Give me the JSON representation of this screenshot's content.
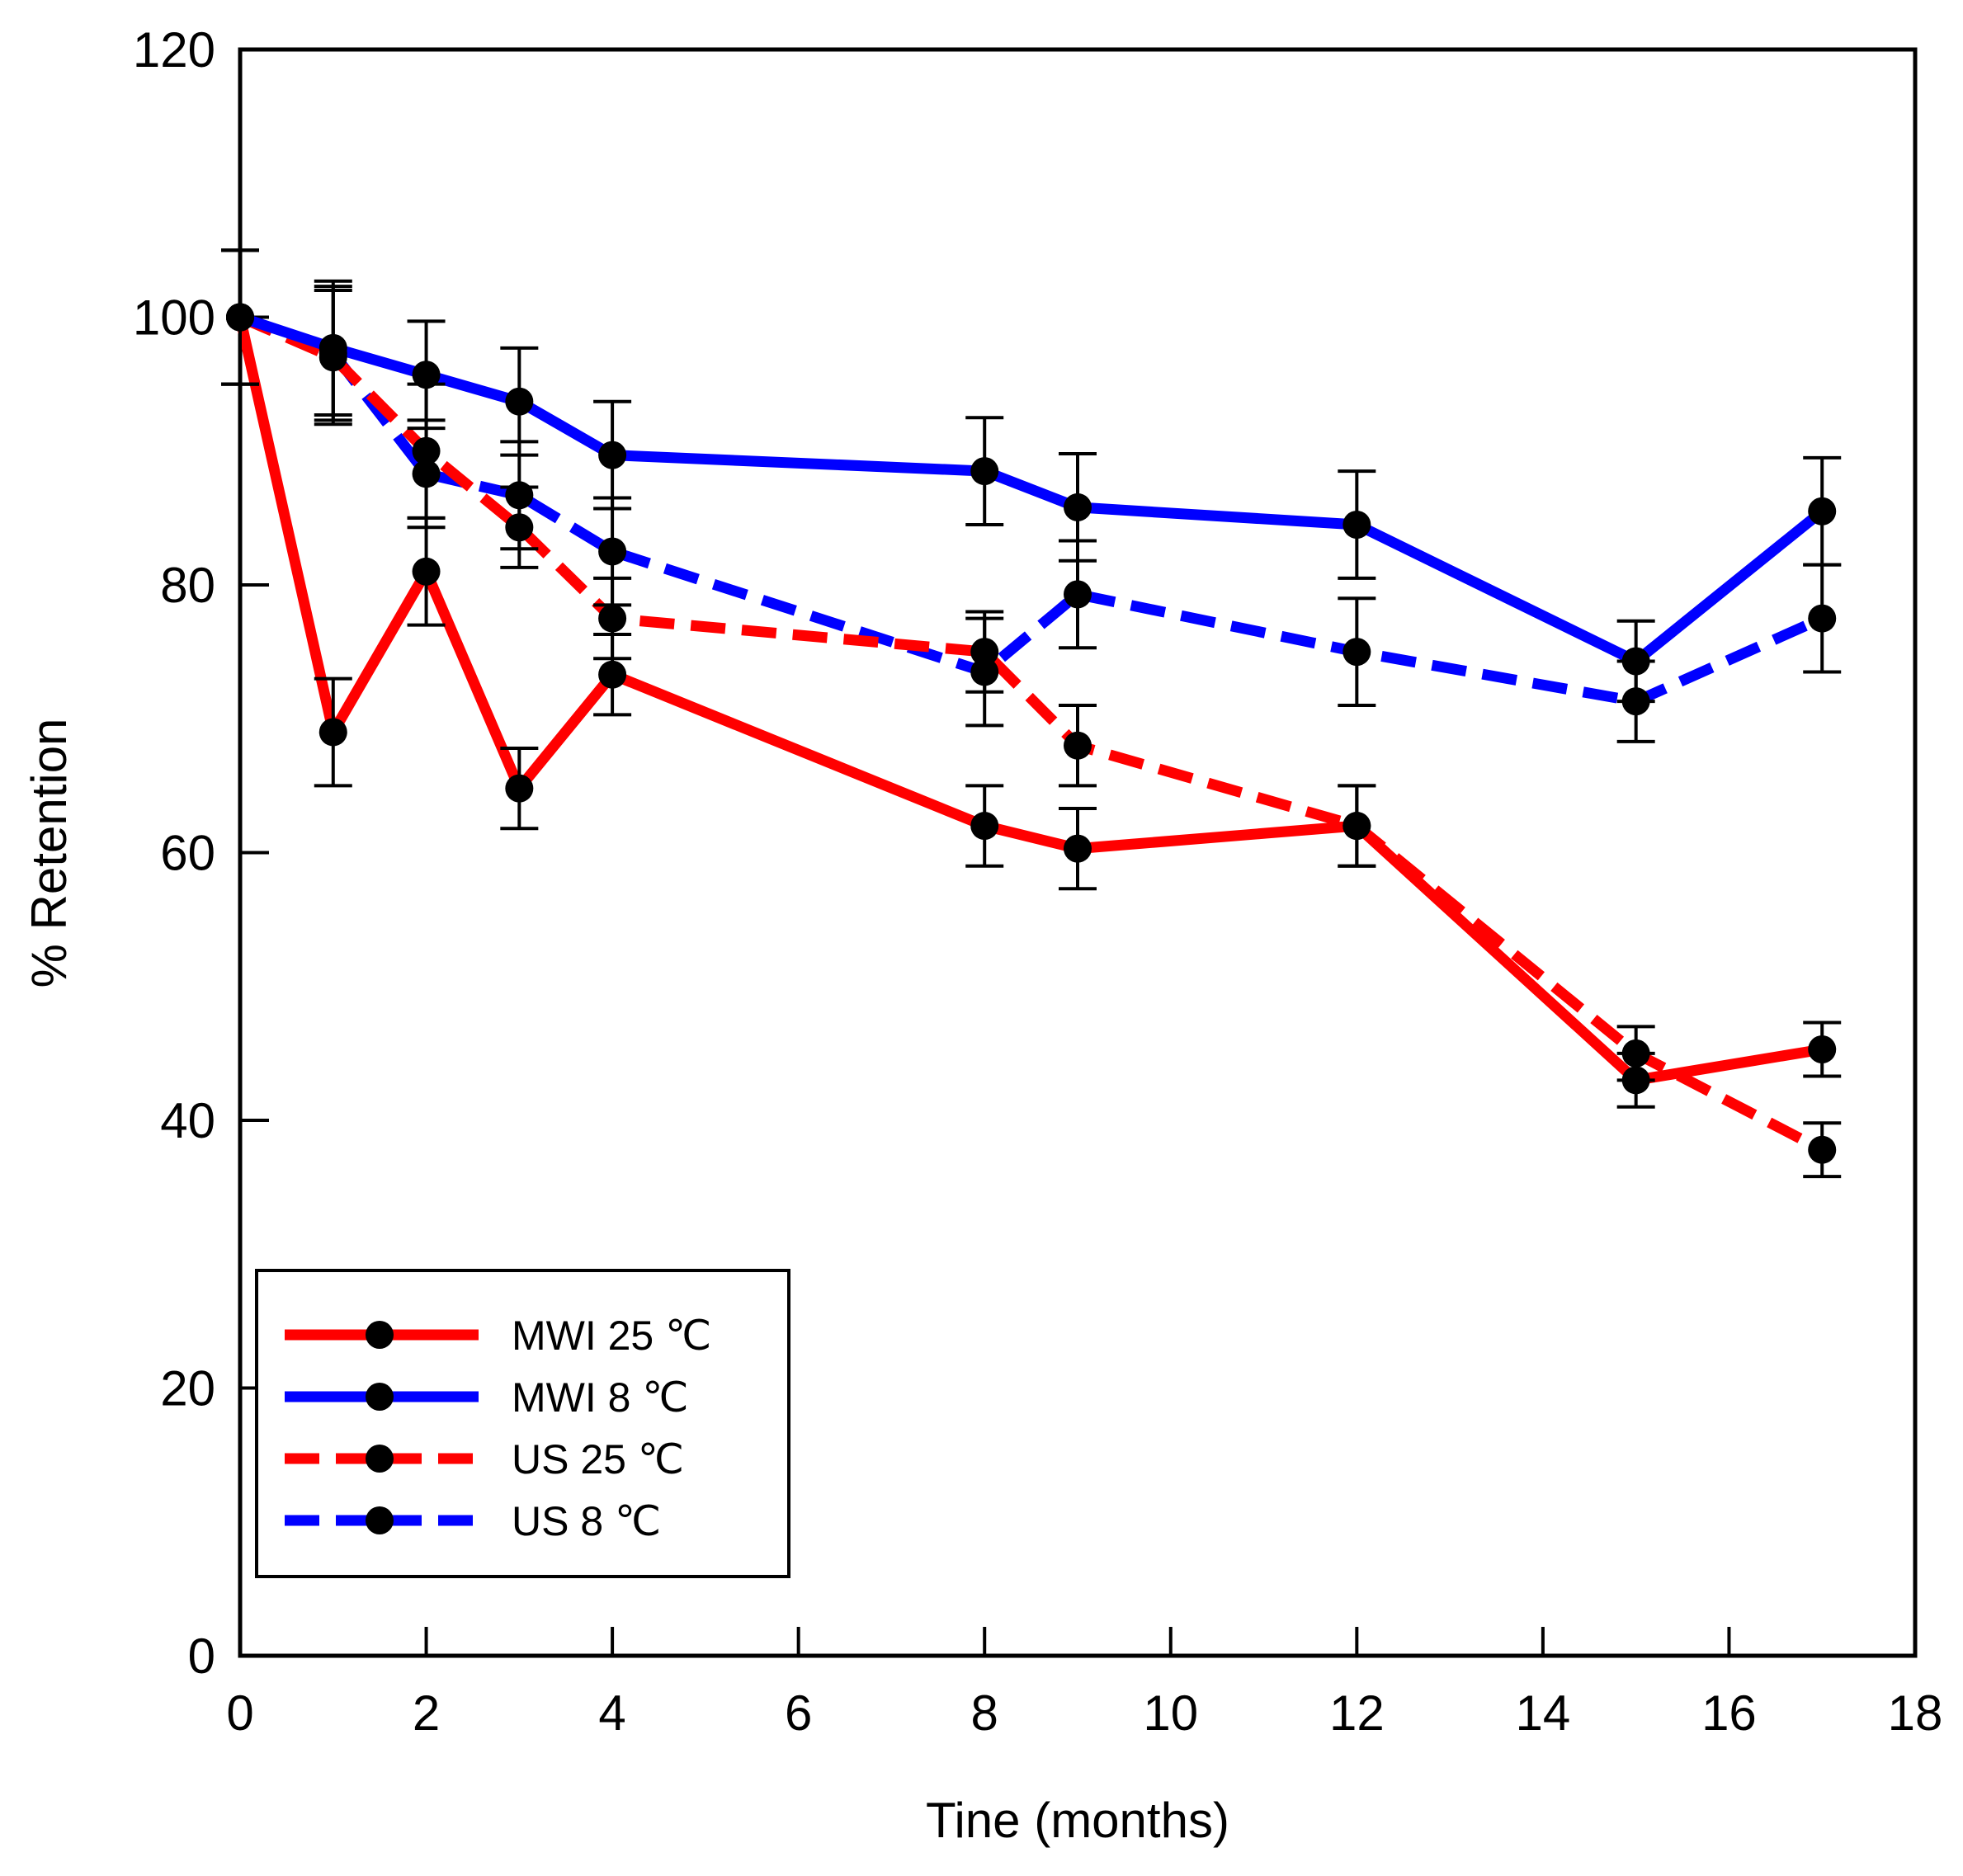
{
  "chart_data": {
    "type": "line",
    "title": "",
    "xlabel": "Tine (months)",
    "ylabel": "% Retention",
    "xlim": [
      0,
      18
    ],
    "ylim": [
      0,
      120
    ],
    "xticks": [
      0,
      2,
      4,
      6,
      8,
      10,
      12,
      14,
      16,
      18
    ],
    "yticks": [
      0,
      20,
      40,
      60,
      80,
      100,
      120
    ],
    "grid": false,
    "legend_position": "lower-left",
    "series": [
      {
        "name": "MWI 25 ℃",
        "color": "#ff0000",
        "dash": "solid",
        "x": [
          0,
          1,
          2,
          3,
          4,
          8,
          9,
          12,
          15,
          17
        ],
        "y": [
          100,
          69,
          81,
          64.8,
          73.3,
          62,
          60.3,
          62,
          43,
          45.3
        ],
        "err": [
          5,
          4,
          4,
          3,
          3,
          3,
          3,
          3,
          2,
          2
        ]
      },
      {
        "name": "MWI 8 ℃",
        "color": "#0000ff",
        "dash": "solid",
        "x": [
          0,
          1,
          2,
          3,
          4,
          8,
          9,
          12,
          15,
          17
        ],
        "y": [
          100,
          97.7,
          95.7,
          93.7,
          89.7,
          88.5,
          85.8,
          84.5,
          74.3,
          85.5
        ],
        "err": [
          5,
          5,
          4,
          4,
          4,
          4,
          4,
          4,
          3,
          4
        ]
      },
      {
        "name": "US 25 ℃",
        "color": "#ff0000",
        "dash": "dashed",
        "x": [
          0,
          1,
          2,
          3,
          4,
          8,
          9,
          12,
          15,
          17
        ],
        "y": [
          100,
          97,
          90,
          84.3,
          77.5,
          75,
          68,
          62,
          45,
          37.8
        ],
        "err": [
          5,
          5,
          5,
          3,
          3,
          3,
          3,
          3,
          2,
          2
        ]
      },
      {
        "name": "US 8 ℃",
        "color": "#0000ff",
        "dash": "dashed",
        "x": [
          0,
          1,
          2,
          3,
          4,
          8,
          9,
          12,
          15,
          17
        ],
        "y": [
          100,
          97.3,
          88.3,
          86.7,
          82.5,
          73.5,
          79.3,
          75,
          71.3,
          77.5
        ],
        "err": [
          5,
          5,
          4,
          4,
          4,
          4,
          4,
          4,
          3,
          4
        ]
      }
    ]
  }
}
